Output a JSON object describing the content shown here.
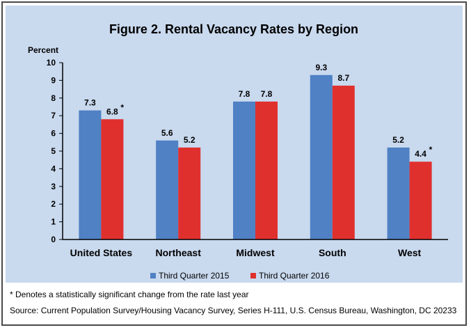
{
  "chart_data": {
    "type": "bar",
    "title": "Figure 2. Rental Vacancy Rates by Region",
    "ylabel": "Percent",
    "xlabel": "",
    "ylim": [
      0,
      10
    ],
    "yticks": [
      "0",
      "1",
      "2",
      "3",
      "4",
      "5",
      "6",
      "7",
      "8",
      "9",
      "10"
    ],
    "categories": [
      "United States",
      "Northeast",
      "Midwest",
      "South",
      "West"
    ],
    "series": [
      {
        "name": "Third Quarter 2015",
        "color": "#4f81c4",
        "values": [
          7.3,
          5.6,
          7.8,
          9.3,
          5.2
        ],
        "labels": [
          "7.3",
          "5.6",
          "7.8",
          "9.3",
          "5.2"
        ],
        "significant": [
          false,
          false,
          false,
          false,
          false
        ]
      },
      {
        "name": "Third Quarter 2016",
        "color": "#e0302e",
        "values": [
          6.8,
          5.2,
          7.8,
          8.7,
          4.4
        ],
        "labels": [
          "6.8",
          "5.2",
          "7.8",
          "8.7",
          "4.4"
        ],
        "significant": [
          true,
          false,
          false,
          false,
          true
        ]
      }
    ],
    "significance_marker": "*",
    "grid": false,
    "legend_position": "bottom"
  },
  "footnotes": {
    "significance": "* Denotes a statistically significant change from the rate last year",
    "source": "Source: Current Population Survey/Housing Vacancy Survey, Series H-111, U.S. Census Bureau, Washington, DC 20233"
  }
}
